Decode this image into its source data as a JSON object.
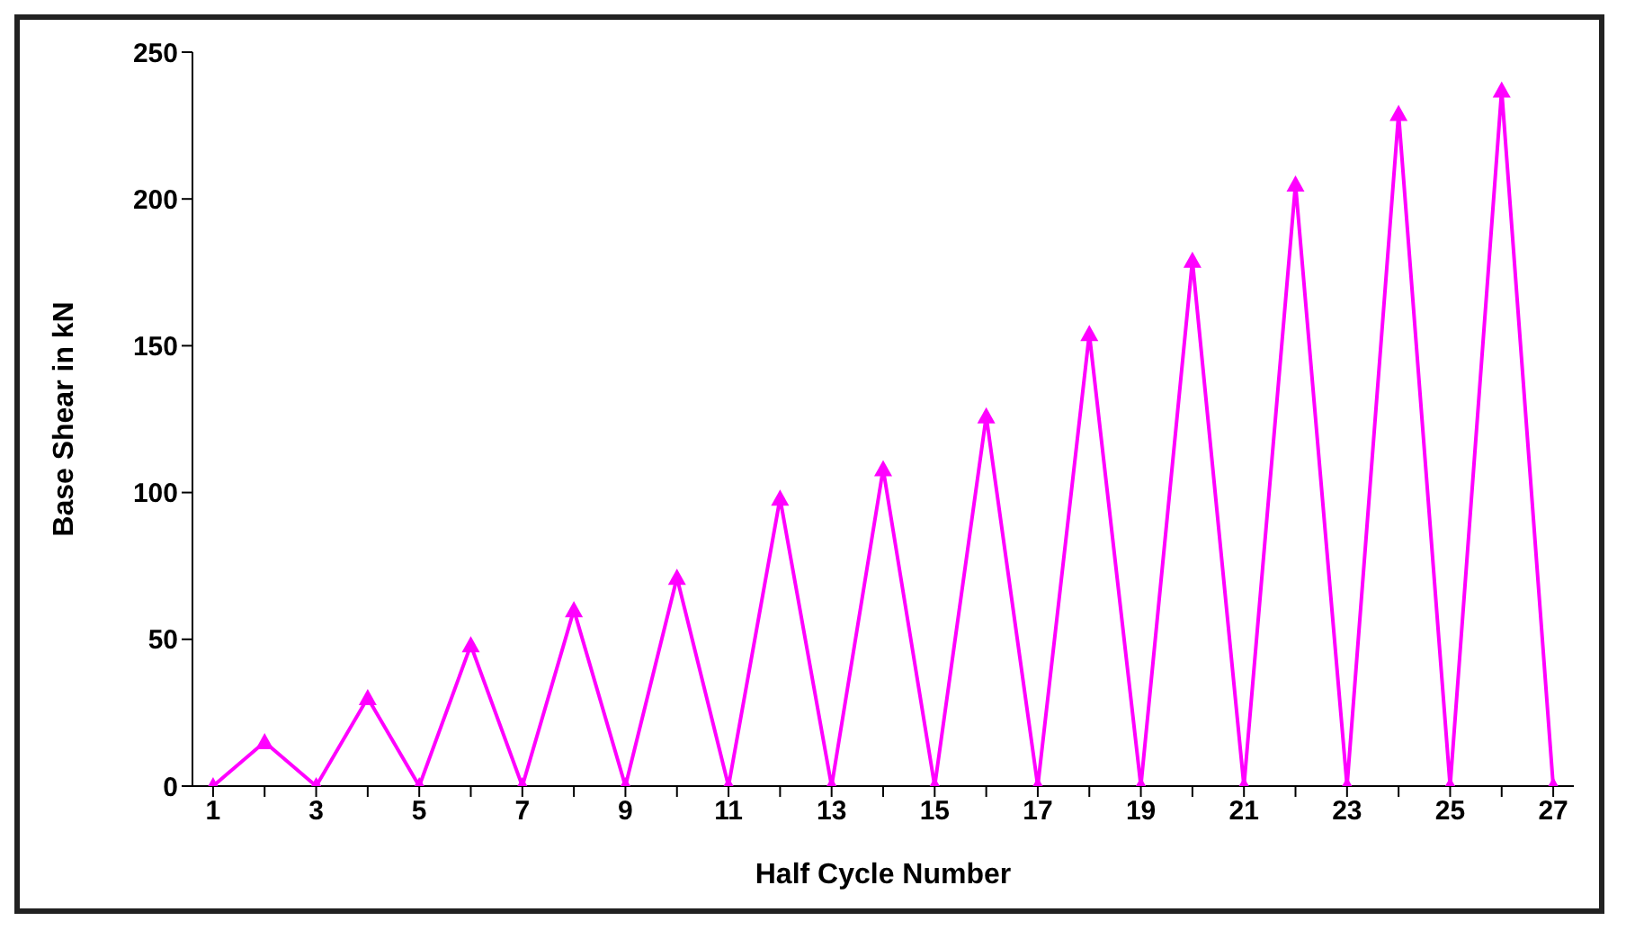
{
  "chart_data": {
    "type": "line",
    "xlabel": "Half Cycle Number",
    "ylabel": "Base Shear in kN",
    "x": [
      1,
      2,
      3,
      4,
      5,
      6,
      7,
      8,
      9,
      10,
      11,
      12,
      13,
      14,
      15,
      16,
      17,
      18,
      19,
      20,
      21,
      22,
      23,
      24,
      25,
      26,
      27
    ],
    "series": [
      {
        "color": "#ff00ff",
        "values": [
          0,
          15,
          0,
          30,
          0,
          48,
          0,
          60,
          0,
          71,
          0,
          98,
          0,
          108,
          0,
          126,
          0,
          154,
          0,
          179,
          0,
          205,
          0,
          229,
          0,
          237,
          0
        ]
      }
    ],
    "xlim": [
      0.6,
      27.4
    ],
    "xticks": [
      1,
      {
        "value": 2,
        "label": null
      },
      3,
      {
        "value": 4,
        "label": null
      },
      5,
      {
        "value": 6,
        "label": null
      },
      7,
      {
        "value": 8,
        "label": null
      },
      9,
      {
        "value": 10,
        "label": null
      },
      11,
      {
        "value": 12,
        "label": null
      },
      13,
      {
        "value": 14,
        "label": null
      },
      15,
      {
        "value": 16,
        "label": null
      },
      17,
      {
        "value": 18,
        "label": null
      },
      19,
      {
        "value": 20,
        "label": null
      },
      21,
      {
        "value": 22,
        "label": null
      },
      23,
      {
        "value": 24,
        "label": null
      },
      25,
      {
        "value": 26,
        "label": null
      },
      27
    ],
    "ylim": [
      0,
      250
    ],
    "yticks": [
      0,
      50,
      100,
      150,
      200,
      250
    ],
    "grid": false,
    "legend": false,
    "marker": "triangle",
    "line_style": "solid"
  }
}
